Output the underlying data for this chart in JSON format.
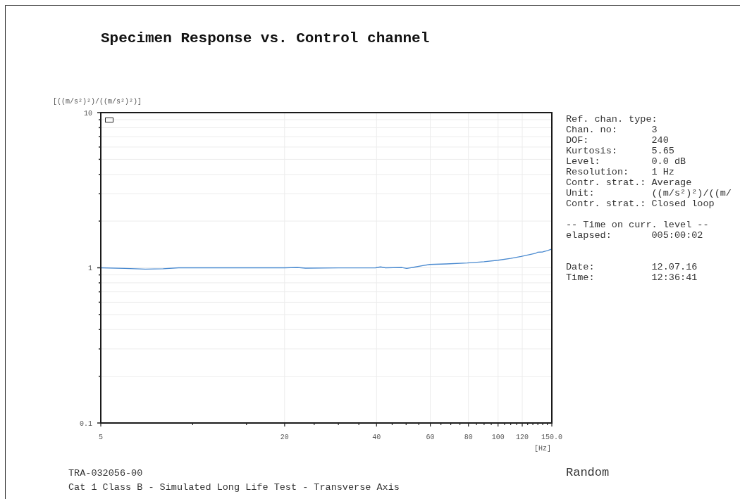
{
  "chart_data": {
    "type": "line",
    "title": "Specimen Response vs. Control channel",
    "xlabel": "[Hz]",
    "ylabel": "[((m/s²)²)/((m/s²)²)]",
    "log": "xy",
    "grid": true,
    "xlim": [
      5,
      150
    ],
    "ylim": [
      0.1,
      10
    ],
    "xticks": [
      5,
      {
        "value": 10,
        "label": null
      },
      {
        "value": 15,
        "label": null
      },
      20,
      {
        "value": 25,
        "label": null
      },
      {
        "value": 30,
        "label": null
      },
      {
        "value": 35,
        "label": null
      },
      40,
      {
        "value": 45,
        "label": null
      },
      {
        "value": 50,
        "label": null
      },
      {
        "value": 55,
        "label": null
      },
      60,
      {
        "value": 65,
        "label": null
      },
      {
        "value": 70,
        "label": null
      },
      {
        "value": 75,
        "label": null
      },
      80,
      {
        "value": 85,
        "label": null
      },
      {
        "value": 90,
        "label": null
      },
      {
        "value": 95,
        "label": null
      },
      100,
      {
        "value": 105,
        "label": null
      },
      {
        "value": 110,
        "label": null
      },
      {
        "value": 115,
        "label": null
      },
      120,
      {
        "value": 125,
        "label": null
      },
      {
        "value": 130,
        "label": null
      },
      {
        "value": 135,
        "label": null
      },
      {
        "value": 140,
        "label": null
      },
      {
        "value": 145,
        "label": null
      },
      {
        "value": 150,
        "label": "150.0"
      }
    ],
    "yticks": [
      {
        "value": 0.1,
        "label": "0.1"
      },
      {
        "value": 0.2,
        "label": null
      },
      {
        "value": 0.3,
        "label": null
      },
      {
        "value": 0.4,
        "label": null
      },
      {
        "value": 0.5,
        "label": null
      },
      {
        "value": 0.6,
        "label": null
      },
      {
        "value": 0.7,
        "label": null
      },
      {
        "value": 0.8,
        "label": null
      },
      {
        "value": 0.9,
        "label": null
      },
      1,
      {
        "value": 2,
        "label": null
      },
      {
        "value": 3,
        "label": null
      },
      {
        "value": 4,
        "label": null
      },
      {
        "value": 5,
        "label": null
      },
      {
        "value": 6,
        "label": null
      },
      {
        "value": 7,
        "label": null
      },
      {
        "value": 8,
        "label": null
      },
      {
        "value": 9,
        "label": null
      },
      10
    ],
    "series": [
      {
        "color": "#4a8ad0",
        "x": [
          5,
          6,
          7,
          8,
          9,
          12,
          20,
          22,
          23.4,
          30,
          39.7,
          41.2,
          42.8,
          48.4,
          50.2,
          52.9,
          56.7,
          59.8,
          67.6,
          79.3,
          90,
          100,
          110,
          119,
          132.7,
          134.9,
          140,
          145,
          150
        ],
        "values": [
          1.0,
          0.99,
          0.98,
          0.985,
          1.0,
          1.0,
          1.0,
          1.005,
          0.995,
          0.998,
          1.0,
          1.013,
          1.0,
          1.005,
          0.99,
          1.008,
          1.034,
          1.051,
          1.059,
          1.074,
          1.095,
          1.119,
          1.15,
          1.184,
          1.239,
          1.261,
          1.265,
          1.29,
          1.319
        ]
      }
    ],
    "annotations": [
      "Ref. chan. type:",
      "Chan. no:      3",
      "DOF:           240",
      "Kurtosis:      5.65",
      "Level:         0.0 dB",
      "Resolution:    1 Hz",
      "Contr. strat.: Average",
      "Unit:          ((m/s²)²)/((m/",
      "Contr. strat.: Closed loop",
      "-- Time on curr. level --",
      "elapsed:       005:00:02",
      "Date:          12.07.16",
      "Time:          12:36:41",
      "TRA-032056-00",
      "Cat 1 Class B - Simulated Long Life Test - Transverse Axis",
      "Random"
    ]
  }
}
